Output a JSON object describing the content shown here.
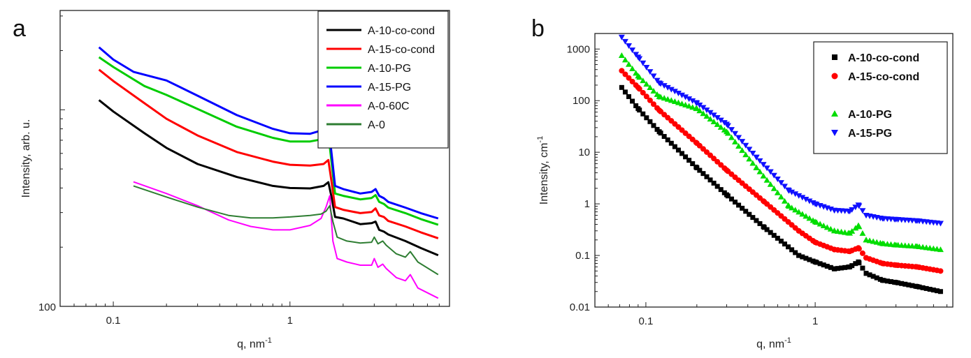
{
  "chart_data": [
    {
      "panel": "a",
      "type": "line",
      "xscale": "log",
      "yscale": "log",
      "xlabel": "q, nm",
      "xlabel_sup": "-1",
      "ylabel": "Intensity, arb. u.",
      "xlim": [
        0.05,
        8
      ],
      "ylim": [
        100,
        3200
      ],
      "xticks": [
        0.1,
        1
      ],
      "xtick_labels": [
        "0.1",
        "1"
      ],
      "ytick_labels": [
        "100"
      ],
      "legend": "top-right",
      "series": [
        {
          "name": "A-10-co-cond",
          "color": "#000000",
          "x": [
            0.083,
            0.1,
            0.15,
            0.2,
            0.3,
            0.5,
            0.8,
            1.0,
            1.3,
            1.55,
            1.65,
            1.72,
            1.8,
            2.0,
            2.5,
            2.9,
            3.05,
            3.2,
            3.4,
            3.6,
            4.5,
            5.5,
            6.9
          ],
          "y": [
            1120,
            980,
            760,
            640,
            530,
            455,
            410,
            400,
            398,
            410,
            428,
            360,
            285,
            280,
            262,
            265,
            270,
            245,
            240,
            232,
            215,
            198,
            182
          ]
        },
        {
          "name": "A-15-co-cond",
          "color": "#ff0000",
          "x": [
            0.083,
            0.1,
            0.15,
            0.2,
            0.3,
            0.5,
            0.8,
            1.0,
            1.3,
            1.55,
            1.65,
            1.72,
            1.8,
            2.0,
            2.5,
            2.9,
            3.05,
            3.2,
            3.4,
            3.6,
            4.5,
            5.5,
            6.9
          ],
          "y": [
            1600,
            1400,
            1080,
            900,
            740,
            610,
            545,
            525,
            520,
            530,
            555,
            430,
            320,
            310,
            298,
            302,
            315,
            290,
            285,
            272,
            255,
            238,
            222
          ]
        },
        {
          "name": "A-10-PG",
          "color": "#00cc00",
          "x": [
            0.083,
            0.1,
            0.15,
            0.2,
            0.3,
            0.5,
            0.8,
            1.0,
            1.3,
            1.55,
            1.65,
            1.72,
            1.8,
            2.0,
            2.5,
            2.9,
            3.05,
            3.2,
            3.4,
            3.6,
            4.5,
            5.5,
            6.9
          ],
          "y": [
            1850,
            1650,
            1320,
            1190,
            1010,
            820,
            720,
            690,
            690,
            710,
            750,
            540,
            375,
            365,
            350,
            356,
            368,
            340,
            332,
            318,
            298,
            278,
            260
          ]
        },
        {
          "name": "A-15-PG",
          "color": "#0000ff",
          "x": [
            0.083,
            0.1,
            0.13,
            0.2,
            0.3,
            0.5,
            0.8,
            1.0,
            1.3,
            1.55,
            1.65,
            1.72,
            1.8,
            2.0,
            2.5,
            2.9,
            3.05,
            3.2,
            3.4,
            3.6,
            4.5,
            5.5,
            6.9
          ],
          "y": [
            2080,
            1800,
            1560,
            1410,
            1180,
            940,
            800,
            760,
            755,
            790,
            840,
            600,
            410,
            395,
            375,
            382,
            395,
            365,
            355,
            340,
            318,
            298,
            280
          ]
        },
        {
          "name": "A-0-60C",
          "color": "#ff00ff",
          "x": [
            0.13,
            0.2,
            0.3,
            0.45,
            0.6,
            0.8,
            1.0,
            1.3,
            1.5,
            1.6,
            1.68,
            1.75,
            1.85,
            2.1,
            2.5,
            2.9,
            3.0,
            3.15,
            3.35,
            3.5,
            4.0,
            4.5,
            4.8,
            5.3,
            6.9
          ],
          "y": [
            430,
            375,
            325,
            275,
            255,
            245,
            245,
            258,
            280,
            320,
            365,
            215,
            175,
            168,
            162,
            162,
            175,
            158,
            164,
            156,
            140,
            135,
            145,
            124,
            110
          ]
        },
        {
          "name": "A-0",
          "color": "#2e7d32",
          "x": [
            0.13,
            0.2,
            0.3,
            0.45,
            0.6,
            0.8,
            1.0,
            1.3,
            1.5,
            1.6,
            1.68,
            1.75,
            1.85,
            2.1,
            2.5,
            2.9,
            3.0,
            3.15,
            3.35,
            3.5,
            4.0,
            4.5,
            4.8,
            5.3,
            6.9
          ],
          "y": [
            410,
            360,
            320,
            290,
            282,
            282,
            285,
            290,
            295,
            305,
            325,
            270,
            225,
            215,
            210,
            212,
            225,
            208,
            215,
            205,
            185,
            178,
            190,
            168,
            145
          ]
        }
      ]
    },
    {
      "panel": "b",
      "type": "scatter",
      "xscale": "log",
      "yscale": "log",
      "xlabel": "q, nm",
      "xlabel_sup": "-1",
      "ylabel": "Intensity, cm",
      "ylabel_sup": "-1",
      "xlim": [
        0.05,
        6.5
      ],
      "ylim": [
        0.01,
        2000
      ],
      "xticks": [
        0.1,
        1
      ],
      "xtick_labels": [
        "0.1",
        "1"
      ],
      "yticks": [
        0.01,
        0.1,
        1,
        10,
        100,
        1000
      ],
      "ytick_labels": [
        "0.01",
        "0.1",
        "1",
        "10",
        "100",
        "1000"
      ],
      "legend": "top-right",
      "series": [
        {
          "name": "A-10-co-cond",
          "color": "#000000",
          "marker": "square",
          "x": [
            0.072,
            0.09,
            0.12,
            0.2,
            0.3,
            0.5,
            0.8,
            1.0,
            1.3,
            1.6,
            1.8,
            2.0,
            2.5,
            3.0,
            4.0,
            5.5
          ],
          "y": [
            180,
            70,
            25,
            5,
            1.5,
            0.35,
            0.1,
            0.075,
            0.055,
            0.06,
            0.075,
            0.045,
            0.033,
            0.03,
            0.025,
            0.02
          ]
        },
        {
          "name": "A-15-co-cond",
          "color": "#ff0000",
          "marker": "circle",
          "x": [
            0.072,
            0.09,
            0.12,
            0.2,
            0.3,
            0.5,
            0.8,
            1.0,
            1.3,
            1.6,
            1.8,
            2.0,
            2.5,
            3.0,
            4.0,
            5.5
          ],
          "y": [
            380,
            180,
            65,
            15,
            4.5,
            1.1,
            0.3,
            0.18,
            0.13,
            0.12,
            0.14,
            0.09,
            0.07,
            0.065,
            0.06,
            0.05
          ]
        },
        {
          "name": "A-10-PG",
          "color": "#00dd00",
          "marker": "triangle-up",
          "x": [
            0.072,
            0.09,
            0.12,
            0.2,
            0.3,
            0.45,
            0.7,
            1.0,
            1.3,
            1.6,
            1.8,
            2.0,
            2.5,
            3.0,
            4.0,
            5.5
          ],
          "y": [
            750,
            300,
            120,
            70,
            25,
            5,
            0.9,
            0.45,
            0.3,
            0.27,
            0.38,
            0.2,
            0.17,
            0.16,
            0.15,
            0.13
          ]
        },
        {
          "name": "A-15-PG",
          "color": "#1010ff",
          "marker": "triangle-down",
          "x": [
            0.072,
            0.09,
            0.12,
            0.2,
            0.3,
            0.45,
            0.7,
            1.0,
            1.3,
            1.6,
            1.8,
            2.0,
            2.5,
            3.0,
            4.0,
            5.5
          ],
          "y": [
            1700,
            700,
            220,
            90,
            35,
            8,
            1.8,
            1.0,
            0.75,
            0.72,
            0.95,
            0.6,
            0.52,
            0.5,
            0.47,
            0.42
          ]
        }
      ]
    }
  ],
  "labels": {
    "panel_a": "a",
    "panel_b": "b"
  }
}
